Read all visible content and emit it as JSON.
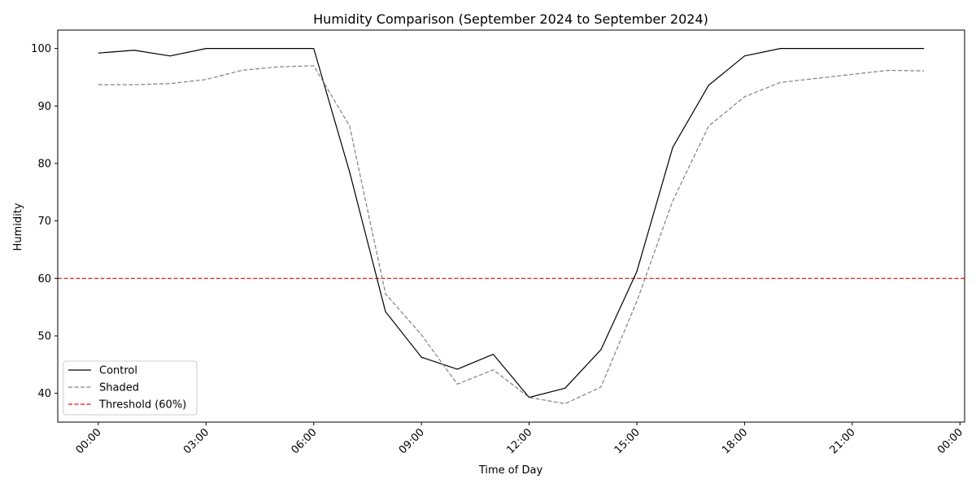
{
  "chart_data": {
    "type": "line",
    "title": "Humidity Comparison (September 2024 to September 2024)",
    "xlabel": "Time of Day",
    "ylabel": "Humidity",
    "x": [
      0,
      1,
      2,
      3,
      4,
      5,
      6,
      7,
      8,
      9,
      10,
      11,
      12,
      13,
      14,
      15,
      16,
      17,
      18,
      19,
      20,
      21,
      22,
      23
    ],
    "x_ticks": [
      0,
      3,
      6,
      9,
      12,
      15,
      18,
      21,
      24
    ],
    "x_tick_labels": [
      "00:00",
      "03:00",
      "06:00",
      "09:00",
      "12:00",
      "15:00",
      "18:00",
      "21:00",
      "00:00"
    ],
    "xlim": [
      -1.13,
      24.13
    ],
    "y_ticks": [
      40,
      50,
      60,
      70,
      80,
      90,
      100
    ],
    "ylim": [
      35.0,
      103.2
    ],
    "grid": false,
    "legend_position": "lower-left",
    "series": [
      {
        "name": "Control",
        "color": "#000000",
        "dash": "solid",
        "values": [
          99.2,
          99.7,
          98.7,
          100,
          100,
          100,
          100,
          78.5,
          54.2,
          46.3,
          44.2,
          46.8,
          39.3,
          40.9,
          47.6,
          61.2,
          82.8,
          93.6,
          98.7,
          100,
          100,
          100,
          100,
          100
        ]
      },
      {
        "name": "Shaded",
        "color": "#808080",
        "dash": "dashed",
        "values": [
          93.7,
          93.7,
          93.9,
          94.6,
          96.2,
          96.8,
          97.0,
          86.5,
          57.3,
          50.2,
          41.6,
          44.1,
          39.3,
          38.2,
          41.1,
          56.0,
          73.5,
          86.5,
          91.6,
          94.1,
          94.8,
          95.5,
          96.2,
          96.1
        ]
      }
    ],
    "threshold": {
      "name": "Threshold (60%)",
      "value": 60,
      "color": "#ff0000",
      "dash": "dashed"
    }
  }
}
